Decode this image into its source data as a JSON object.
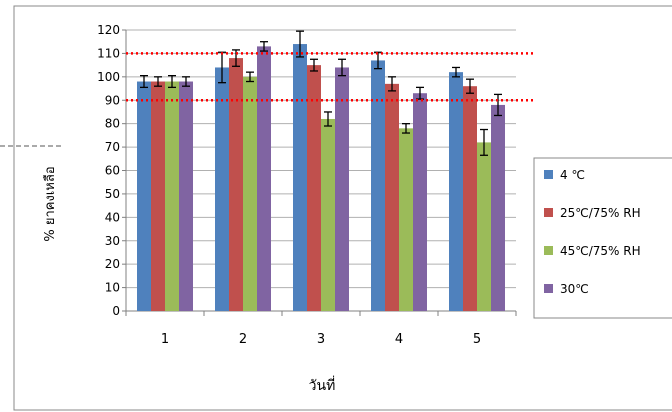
{
  "chart_data": {
    "type": "bar",
    "title": "",
    "xlabel": "วันที่",
    "ylabel": "% ยาคงเหลือ",
    "categories": [
      "1",
      "2",
      "3",
      "4",
      "5"
    ],
    "ylim": [
      0,
      120
    ],
    "ytick_step": 10,
    "grid": true,
    "legend_position": "right",
    "series": [
      {
        "name": "4 ℃",
        "color": "#4f81bd",
        "values": [
          98,
          104,
          114,
          107,
          102
        ],
        "errors": [
          2.5,
          6.5,
          5.5,
          3.5,
          2
        ]
      },
      {
        "name": "25℃/75% RH",
        "color": "#c0504d",
        "values": [
          98,
          108,
          105,
          97,
          96
        ],
        "errors": [
          2,
          3.5,
          2.5,
          3,
          3
        ]
      },
      {
        "name": "45℃/75% RH",
        "color": "#9bbb59",
        "values": [
          98,
          100,
          82,
          78,
          72
        ],
        "errors": [
          2.5,
          2,
          3,
          2,
          5.5
        ]
      },
      {
        "name": "30℃",
        "color": "#8064a2",
        "values": [
          98,
          113,
          104,
          93,
          88
        ],
        "errors": [
          2,
          2,
          3.5,
          2.5,
          4.5
        ]
      }
    ],
    "reference_lines": [
      {
        "value": 110,
        "color": "#ff0000",
        "style": "dotted"
      },
      {
        "value": 90,
        "color": "#ff0000",
        "style": "dotted"
      }
    ]
  }
}
